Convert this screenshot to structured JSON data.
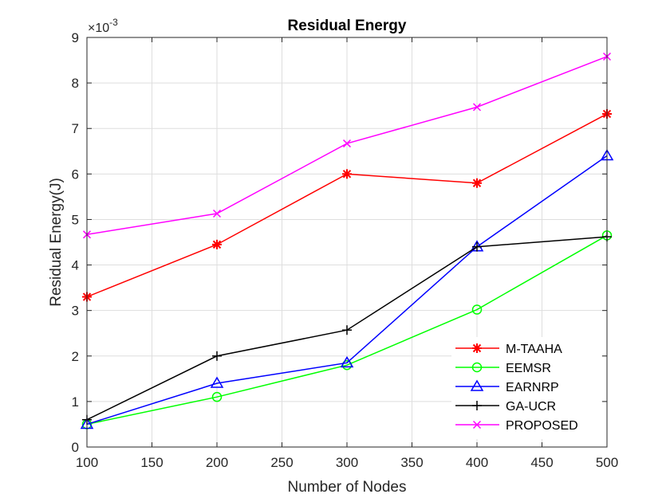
{
  "chart_data": {
    "type": "line",
    "title": "Residual Energy",
    "xlabel": "Number of Nodes",
    "ylabel": "Residual Energy(J)",
    "y_multiplier": "×10",
    "y_multiplier_exponent": "-3",
    "xlim": [
      100,
      500
    ],
    "ylim": [
      0,
      9
    ],
    "xticks": [
      100,
      150,
      200,
      250,
      300,
      350,
      400,
      450,
      500
    ],
    "yticks": [
      0,
      1,
      2,
      3,
      4,
      5,
      6,
      7,
      8,
      9
    ],
    "grid": true,
    "legend_position": "bottom-right",
    "x": [
      100,
      200,
      300,
      400,
      500
    ],
    "series": [
      {
        "name": "M-TAAHA",
        "values": [
          3.3,
          4.45,
          6.0,
          5.8,
          7.32
        ],
        "color": "#ff0000",
        "marker": "asterisk"
      },
      {
        "name": "EEMSR",
        "values": [
          0.5,
          1.1,
          1.8,
          3.02,
          4.65
        ],
        "color": "#00ff00",
        "marker": "circle"
      },
      {
        "name": "EARNRP",
        "values": [
          0.5,
          1.4,
          1.85,
          4.4,
          6.4
        ],
        "color": "#0000ff",
        "marker": "triangle"
      },
      {
        "name": "GA-UCR",
        "values": [
          0.6,
          2.0,
          2.57,
          4.4,
          4.62
        ],
        "color": "#000000",
        "marker": "plus"
      },
      {
        "name": "PROPOSED",
        "values": [
          4.67,
          5.13,
          6.67,
          7.47,
          8.58
        ],
        "color": "#ff00ff",
        "marker": "x"
      }
    ]
  }
}
